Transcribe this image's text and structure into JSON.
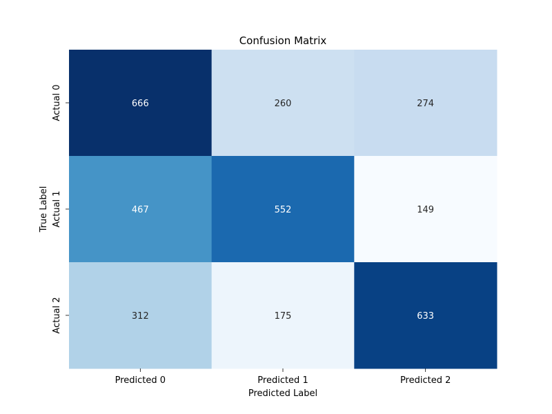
{
  "chart_data": {
    "type": "heatmap",
    "title": "Confusion Matrix",
    "xlabel": "Predicted Label",
    "ylabel": "True Label",
    "x_categories": [
      "Predicted 0",
      "Predicted 1",
      "Predicted 2"
    ],
    "y_categories": [
      "Actual 0",
      "Actual 1",
      "Actual 2"
    ],
    "values": [
      [
        666,
        260,
        274
      ],
      [
        467,
        552,
        149
      ],
      [
        312,
        175,
        633
      ]
    ],
    "colormap": "Blues",
    "color_range": [
      149,
      666
    ],
    "colorbar": false,
    "grid": false
  }
}
